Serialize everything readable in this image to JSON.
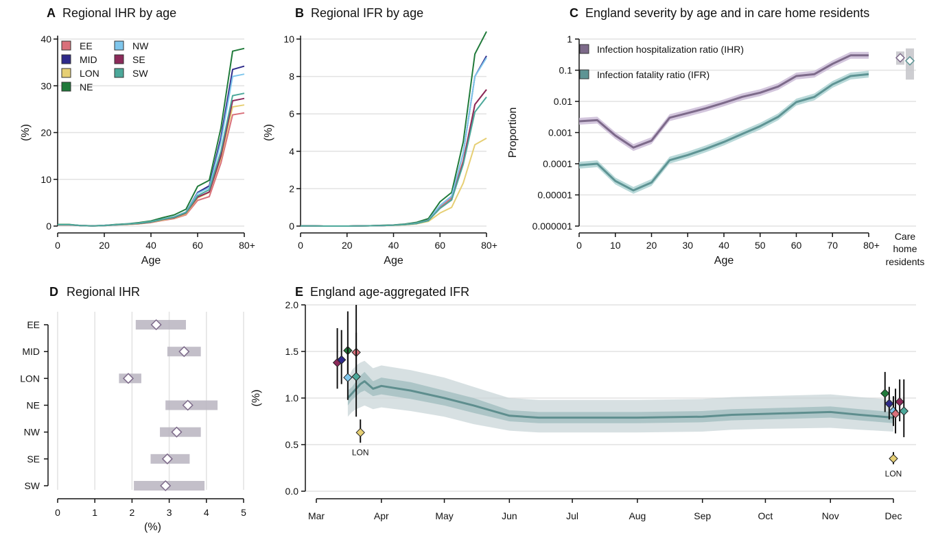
{
  "colors": {
    "EE": "#d9707a",
    "MID": "#2e2a8a",
    "LON": "#e6cf74",
    "NE": "#1f7a3a",
    "NW": "#7fc6ec",
    "SE": "#8c2a5a",
    "SW": "#4ca89a",
    "ihr": "#7d6a8a",
    "ihr_band": "#c8b8d4",
    "ifr": "#5e9494",
    "ifr_band": "#a8d0d0"
  },
  "chart_data": [
    {
      "panel": "A",
      "type": "line",
      "title": "Regional IHR by age",
      "xlabel": "Age",
      "ylabel": "(%)",
      "ylim": [
        0,
        40
      ],
      "yticks": [
        "0",
        "10",
        "20",
        "30",
        "40"
      ],
      "xlim": [
        0,
        80
      ],
      "xticks": [
        "0",
        "20",
        "40",
        "60",
        "80+"
      ],
      "legend_placement": "top-left",
      "x": [
        0,
        5,
        10,
        15,
        20,
        25,
        30,
        35,
        40,
        45,
        50,
        55,
        60,
        65,
        70,
        75,
        80
      ],
      "series": [
        {
          "name": "EE",
          "values": [
            0.25,
            0.25,
            0.1,
            0.05,
            0.1,
            0.25,
            0.35,
            0.5,
            0.75,
            1.2,
            1.6,
            2.4,
            5.5,
            6.3,
            13.5,
            23.8,
            24.2
          ]
        },
        {
          "name": "MID",
          "values": [
            0.3,
            0.3,
            0.1,
            0.05,
            0.15,
            0.3,
            0.45,
            0.65,
            0.95,
            1.5,
            2.0,
            3.0,
            7.2,
            8.6,
            19.0,
            33.5,
            34.2
          ]
        },
        {
          "name": "LON",
          "values": [
            0.25,
            0.25,
            0.1,
            0.05,
            0.1,
            0.25,
            0.35,
            0.5,
            0.8,
            1.3,
            1.7,
            2.6,
            6.0,
            7.2,
            14.5,
            25.5,
            25.9
          ]
        },
        {
          "name": "NE",
          "values": [
            0.35,
            0.35,
            0.12,
            0.06,
            0.15,
            0.35,
            0.5,
            0.75,
            1.1,
            1.8,
            2.4,
            3.6,
            8.5,
            9.8,
            21.0,
            37.4,
            38.0
          ]
        },
        {
          "name": "NW",
          "values": [
            0.3,
            0.3,
            0.1,
            0.05,
            0.15,
            0.3,
            0.45,
            0.65,
            0.95,
            1.5,
            2.0,
            3.0,
            7.0,
            8.2,
            18.0,
            32.0,
            32.5
          ]
        },
        {
          "name": "SE",
          "values": [
            0.25,
            0.25,
            0.1,
            0.05,
            0.1,
            0.25,
            0.4,
            0.55,
            0.85,
            1.4,
            1.8,
            2.8,
            6.2,
            7.3,
            15.0,
            26.8,
            27.3
          ]
        },
        {
          "name": "SW",
          "values": [
            0.3,
            0.3,
            0.1,
            0.05,
            0.12,
            0.28,
            0.42,
            0.6,
            0.9,
            1.45,
            1.9,
            2.9,
            6.5,
            7.8,
            16.0,
            27.9,
            28.4
          ]
        }
      ]
    },
    {
      "panel": "B",
      "type": "line",
      "title": "Regional IFR by age",
      "xlabel": "Age",
      "ylabel": "(%)",
      "ylim": [
        0,
        10
      ],
      "yticks": [
        "0",
        "2",
        "4",
        "6",
        "8",
        "10"
      ],
      "xlim": [
        0,
        80
      ],
      "xticks": [
        "0",
        "20",
        "40",
        "60",
        "80+"
      ],
      "x": [
        0,
        5,
        10,
        15,
        20,
        25,
        30,
        35,
        40,
        45,
        50,
        55,
        60,
        65,
        70,
        75,
        80
      ],
      "series": [
        {
          "name": "EE",
          "values": [
            0.01,
            0.01,
            0.0,
            0.0,
            0.0,
            0.01,
            0.02,
            0.03,
            0.05,
            0.09,
            0.15,
            0.3,
            1.0,
            1.5,
            3.5,
            6.5,
            7.3
          ]
        },
        {
          "name": "MID",
          "values": [
            0.01,
            0.01,
            0.0,
            0.0,
            0.0,
            0.01,
            0.02,
            0.03,
            0.05,
            0.09,
            0.16,
            0.32,
            1.1,
            1.6,
            3.9,
            8.0,
            9.1
          ]
        },
        {
          "name": "LON",
          "values": [
            0.01,
            0.01,
            0.0,
            0.0,
            0.0,
            0.01,
            0.02,
            0.03,
            0.04,
            0.07,
            0.12,
            0.25,
            0.7,
            1.0,
            2.3,
            4.35,
            4.7
          ]
        },
        {
          "name": "NE",
          "values": [
            0.01,
            0.01,
            0.0,
            0.0,
            0.0,
            0.01,
            0.02,
            0.04,
            0.06,
            0.11,
            0.2,
            0.4,
            1.3,
            1.8,
            4.5,
            9.2,
            10.4
          ]
        },
        {
          "name": "NW",
          "values": [
            0.01,
            0.01,
            0.0,
            0.0,
            0.0,
            0.01,
            0.02,
            0.03,
            0.05,
            0.09,
            0.16,
            0.32,
            1.1,
            1.6,
            3.9,
            8.0,
            9.0
          ]
        },
        {
          "name": "SE",
          "values": [
            0.01,
            0.01,
            0.0,
            0.0,
            0.0,
            0.01,
            0.02,
            0.03,
            0.05,
            0.08,
            0.14,
            0.3,
            0.95,
            1.4,
            3.4,
            6.5,
            7.3
          ]
        },
        {
          "name": "SW",
          "values": [
            0.01,
            0.01,
            0.0,
            0.0,
            0.0,
            0.01,
            0.02,
            0.03,
            0.05,
            0.08,
            0.14,
            0.29,
            0.95,
            1.4,
            3.3,
            6.1,
            6.9
          ]
        }
      ]
    },
    {
      "panel": "C",
      "type": "line",
      "title": "England severity by age and in care home residents",
      "xlabel": "Age",
      "ylabel": "Proportion",
      "yscale": "log",
      "ylim": [
        1e-06,
        1
      ],
      "yticks": [
        "1",
        "0.1",
        "0.01",
        "0.001",
        "0.0001",
        "0.00001",
        "0.000001"
      ],
      "xlim": [
        0,
        80
      ],
      "xticks": [
        "0",
        "10",
        "20",
        "30",
        "40",
        "50",
        "60",
        "70",
        "80+"
      ],
      "care_home_label": "Care home residents",
      "legend_placement": "top-left",
      "x": [
        0,
        5,
        10,
        15,
        20,
        25,
        30,
        35,
        40,
        45,
        50,
        55,
        60,
        65,
        70,
        75,
        80
      ],
      "series": [
        {
          "name": "Infection hospitalization ratio (IHR)",
          "values": [
            0.0023,
            0.0025,
            0.0008,
            0.00033,
            0.00055,
            0.003,
            0.0042,
            0.006,
            0.009,
            0.014,
            0.019,
            0.03,
            0.065,
            0.075,
            0.16,
            0.3,
            0.3
          ],
          "care_home": {
            "value": 0.25,
            "low": 0.15,
            "high": 0.4
          }
        },
        {
          "name": "Infection fatality ratio (IFR)",
          "values": [
            9e-05,
            0.0001,
            2.8e-05,
            1.4e-05,
            2.5e-05,
            0.00013,
            0.00019,
            0.0003,
            0.0005,
            0.0009,
            0.0016,
            0.0032,
            0.0095,
            0.014,
            0.035,
            0.065,
            0.075
          ],
          "care_home": {
            "value": 0.2,
            "low": 0.05,
            "high": 0.5
          }
        }
      ]
    },
    {
      "panel": "D",
      "type": "scatter",
      "title": "Regional IHR",
      "xlabel": "(%)",
      "xlim": [
        0,
        5
      ],
      "xticks": [
        "0",
        "1",
        "2",
        "3",
        "4",
        "5"
      ],
      "categories": [
        "EE",
        "MID",
        "LON",
        "NE",
        "NW",
        "SE",
        "SW"
      ],
      "values": [
        2.65,
        3.4,
        1.9,
        3.5,
        3.2,
        2.95,
        2.9
      ],
      "low": [
        2.1,
        2.95,
        1.65,
        2.9,
        2.75,
        2.5,
        2.05
      ],
      "high": [
        3.45,
        3.85,
        2.25,
        4.3,
        3.85,
        3.55,
        3.95
      ]
    },
    {
      "panel": "E",
      "type": "area",
      "title": "England age-aggregated IFR",
      "ylabel": "(%)",
      "ylim": [
        0,
        2.0
      ],
      "yticks": [
        "0.0",
        "0.5",
        "1.0",
        "1.5",
        "2.0"
      ],
      "xticks": [
        "Mar",
        "Apr",
        "May",
        "Jun",
        "Jul",
        "Aug",
        "Sep",
        "Oct",
        "Nov",
        "Dec"
      ],
      "line": {
        "x": [
          "2020-03-16",
          "2020-03-18",
          "2020-03-20",
          "2020-03-22",
          "2020-03-24",
          "2020-03-28",
          "2020-04-01",
          "2020-04-15",
          "2020-05-01",
          "2020-05-15",
          "2020-06-01",
          "2020-06-15",
          "2020-07-01",
          "2020-08-01",
          "2020-09-01",
          "2020-09-15",
          "2020-10-01",
          "2020-11-01",
          "2020-11-15",
          "2020-12-01"
        ],
        "y": [
          1.0,
          1.05,
          1.1,
          1.15,
          1.18,
          1.1,
          1.13,
          1.08,
          1.0,
          0.92,
          0.81,
          0.79,
          0.79,
          0.79,
          0.8,
          0.82,
          0.83,
          0.85,
          0.82,
          0.79
        ],
        "band_low": [
          0.8,
          0.85,
          0.88,
          0.9,
          0.92,
          0.88,
          0.9,
          0.86,
          0.8,
          0.72,
          0.65,
          0.63,
          0.63,
          0.63,
          0.64,
          0.66,
          0.67,
          0.68,
          0.66,
          0.64
        ],
        "band_high": [
          1.2,
          1.3,
          1.35,
          1.38,
          1.4,
          1.32,
          1.35,
          1.3,
          1.22,
          1.12,
          1.0,
          0.98,
          0.98,
          0.98,
          0.99,
          1.01,
          1.02,
          1.04,
          1.01,
          0.98
        ],
        "inner_low": [
          0.92,
          0.98,
          1.02,
          1.06,
          1.08,
          1.02,
          1.04,
          0.99,
          0.92,
          0.84,
          0.75,
          0.73,
          0.73,
          0.73,
          0.74,
          0.76,
          0.77,
          0.79,
          0.76,
          0.73
        ],
        "inner_high": [
          1.08,
          1.12,
          1.18,
          1.24,
          1.28,
          1.18,
          1.22,
          1.17,
          1.08,
          1.0,
          0.87,
          0.85,
          0.85,
          0.85,
          0.86,
          0.88,
          0.89,
          0.91,
          0.88,
          0.85
        ]
      },
      "points": [
        {
          "region": "SE",
          "date": "2020-03-11",
          "value": 1.38,
          "low": 1.1,
          "high": 1.75
        },
        {
          "region": "MID",
          "date": "2020-03-13",
          "value": 1.41,
          "low": 1.15,
          "high": 1.73
        },
        {
          "region": "NE",
          "date": "2020-03-16",
          "value": 1.51,
          "low": 1.2,
          "high": 1.93
        },
        {
          "region": "EE",
          "date": "2020-03-20",
          "value": 1.49,
          "low": 1.18,
          "high": 2.0
        },
        {
          "region": "NW",
          "date": "2020-03-16",
          "value": 1.22,
          "low": 0.98,
          "high": 1.55
        },
        {
          "region": "SW",
          "date": "2020-03-20",
          "value": 1.23,
          "low": 0.8,
          "high": 1.7
        },
        {
          "region": "LON",
          "date": "2020-03-22",
          "value": 0.63,
          "low": 0.52,
          "high": 0.77,
          "label": "LON"
        },
        {
          "region": "NE",
          "date": "2020-11-27",
          "value": 1.05,
          "low": 0.85,
          "high": 1.28
        },
        {
          "region": "MID",
          "date": "2020-11-29",
          "value": 0.94,
          "low": 0.77,
          "high": 1.12
        },
        {
          "region": "NW",
          "date": "2020-12-01",
          "value": 0.86,
          "low": 0.7,
          "high": 1.02
        },
        {
          "region": "SE",
          "date": "2020-12-04",
          "value": 0.96,
          "low": 0.75,
          "high": 1.2
        },
        {
          "region": "EE",
          "date": "2020-12-02",
          "value": 0.83,
          "low": 0.62,
          "high": 1.1
        },
        {
          "region": "SW",
          "date": "2020-12-06",
          "value": 0.86,
          "low": 0.58,
          "high": 1.2
        },
        {
          "region": "LON",
          "date": "2020-12-01",
          "value": 0.35,
          "low": 0.29,
          "high": 0.42,
          "label": "LON"
        }
      ]
    }
  ]
}
